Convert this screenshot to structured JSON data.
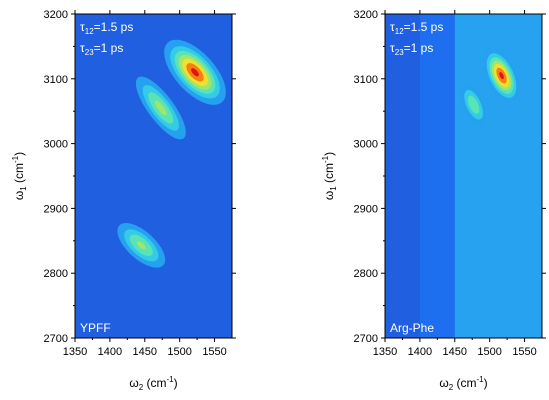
{
  "chart_data": [
    {
      "type": "heatmap",
      "panel_label": "YPFF",
      "annotations": [
        {
          "symbol": "τ",
          "subscript": "12",
          "rest": "=1.5 ps"
        },
        {
          "symbol": "τ",
          "subscript": "23",
          "rest": "=1 ps"
        }
      ],
      "xlabel": {
        "main": "ω",
        "sub": "2",
        "unit_open": " (cm",
        "sup": "-1",
        "unit_close": ")"
      },
      "ylabel": {
        "main": "ω",
        "sub": "1",
        "unit_open": " (cm",
        "sup": "-1",
        "unit_close": ")"
      },
      "xlim": [
        1350,
        1575
      ],
      "ylim": [
        2700,
        3200
      ],
      "xticks": [
        "1350",
        "1400",
        "1450",
        "1500",
        "1550"
      ],
      "yticks": [
        "2700",
        "2800",
        "2900",
        "3000",
        "3100",
        "3200"
      ],
      "background_color": "#1f5fe0",
      "bands": [],
      "peaks": [
        {
          "x": 1522,
          "y": 3110,
          "intensity": 1.0,
          "sx": 16,
          "sy": 35,
          "corr": 0.35
        },
        {
          "x": 1473,
          "y": 3055,
          "intensity": 0.62,
          "sx": 12,
          "sy": 38,
          "corr": 0.3
        },
        {
          "x": 1445,
          "y": 2843,
          "intensity": 0.6,
          "sx": 13,
          "sy": 30,
          "corr": 0.4
        }
      ]
    },
    {
      "type": "heatmap",
      "panel_label": "Arg-Phe",
      "annotations": [
        {
          "symbol": "τ",
          "subscript": "12",
          "rest": "=1.5 ps"
        },
        {
          "symbol": "τ",
          "subscript": "23",
          "rest": "=1 ps"
        }
      ],
      "xlabel": {
        "main": "ω",
        "sub": "2",
        "unit_open": " (cm",
        "sup": "-1",
        "unit_close": ")"
      },
      "ylabel": {
        "main": "ω",
        "sub": "1",
        "unit_open": " (cm",
        "sup": "-1",
        "unit_close": ")"
      },
      "xlim": [
        1350,
        1575
      ],
      "ylim": [
        2700,
        3200
      ],
      "xticks": [
        "1350",
        "1400",
        "1450",
        "1500",
        "1550"
      ],
      "yticks": [
        "2700",
        "2800",
        "2900",
        "3000",
        "3100",
        "3200"
      ],
      "background_color": "#1f5fe0",
      "bands": [
        {
          "x_from": 1400,
          "x_to": 1450,
          "level": 0.18
        },
        {
          "x_from": 1450,
          "x_to": 1575,
          "level": 0.3
        }
      ],
      "peaks": [
        {
          "x": 1517,
          "y": 3105,
          "intensity": 1.0,
          "sx": 12,
          "sy": 26,
          "corr": 0.2
        },
        {
          "x": 1477,
          "y": 3060,
          "intensity": 0.55,
          "sx": 10,
          "sy": 24,
          "corr": 0.2
        }
      ]
    }
  ]
}
